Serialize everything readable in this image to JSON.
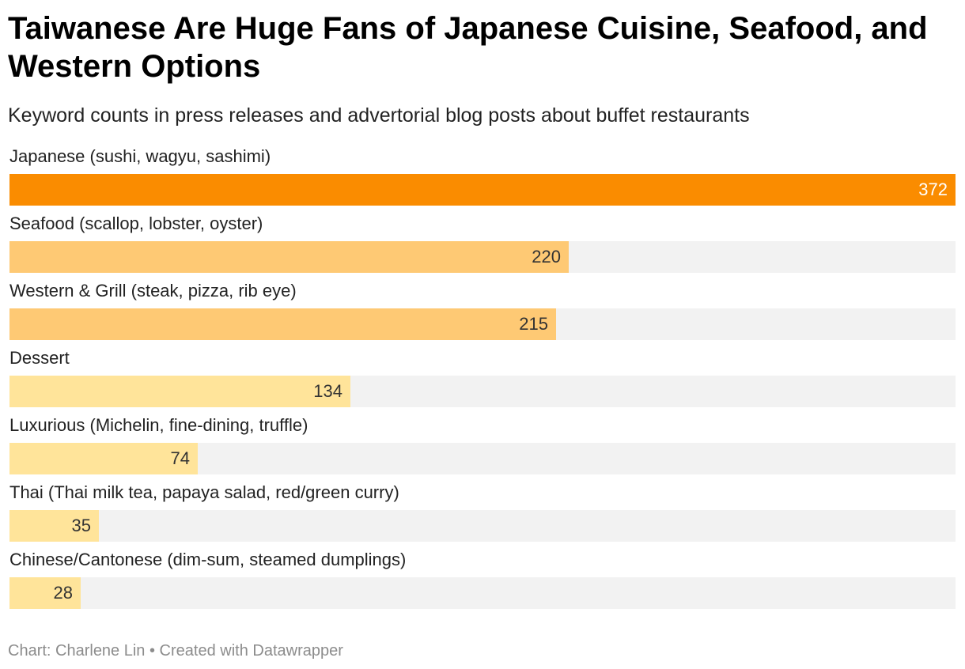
{
  "header": {
    "title": "Taiwanese Are Huge Fans of Japanese Cuisine, Seafood, and Western Options",
    "subtitle": "Keyword counts in press releases and advertorial blog posts about buffet restaurants"
  },
  "footer": {
    "credit": "Chart: Charlene Lin • Created with Datawrapper"
  },
  "colors": {
    "high": "#fa8c00",
    "mid": "#fec974",
    "low": "#ffe49a",
    "track": "#f2f2f2",
    "value_on_high": "#ffffff",
    "value_default": "#333333"
  },
  "chart_data": {
    "type": "bar",
    "orientation": "horizontal",
    "title": "Taiwanese Are Huge Fans of Japanese Cuisine, Seafood, and Western Options",
    "subtitle": "Keyword counts in press releases and advertorial blog posts about buffet restaurants",
    "xlabel": "",
    "ylabel": "",
    "xlim": [
      0,
      372
    ],
    "grid": false,
    "legend": "none",
    "categories": [
      "Japanese (sushi, wagyu, sashimi)",
      "Seafood (scallop, lobster, oyster)",
      "Western & Grill (steak, pizza, rib eye)",
      "Dessert",
      "Luxurious (Michelin, fine-dining, truffle)",
      "Thai (Thai milk tea, papaya salad, red/green curry)",
      "Chinese/Cantonese (dim-sum, steamed dumplings)"
    ],
    "values": [
      372,
      220,
      215,
      134,
      74,
      35,
      28
    ],
    "bars": [
      {
        "label": "Japanese (sushi, wagyu, sashimi)",
        "value": 372,
        "value_text": "372",
        "tier": "high"
      },
      {
        "label": "Seafood (scallop, lobster, oyster)",
        "value": 220,
        "value_text": "220",
        "tier": "mid"
      },
      {
        "label": "Western & Grill (steak, pizza, rib eye)",
        "value": 215,
        "value_text": "215",
        "tier": "mid"
      },
      {
        "label": "Dessert",
        "value": 134,
        "value_text": "134",
        "tier": "low"
      },
      {
        "label": "Luxurious (Michelin, fine-dining, truffle)",
        "value": 74,
        "value_text": "74",
        "tier": "low"
      },
      {
        "label": "Thai (Thai milk tea, papaya salad, red/green curry)",
        "value": 35,
        "value_text": "35",
        "tier": "low"
      },
      {
        "label": "Chinese/Cantonese (dim-sum, steamed dumplings)",
        "value": 28,
        "value_text": "28",
        "tier": "low"
      }
    ]
  }
}
